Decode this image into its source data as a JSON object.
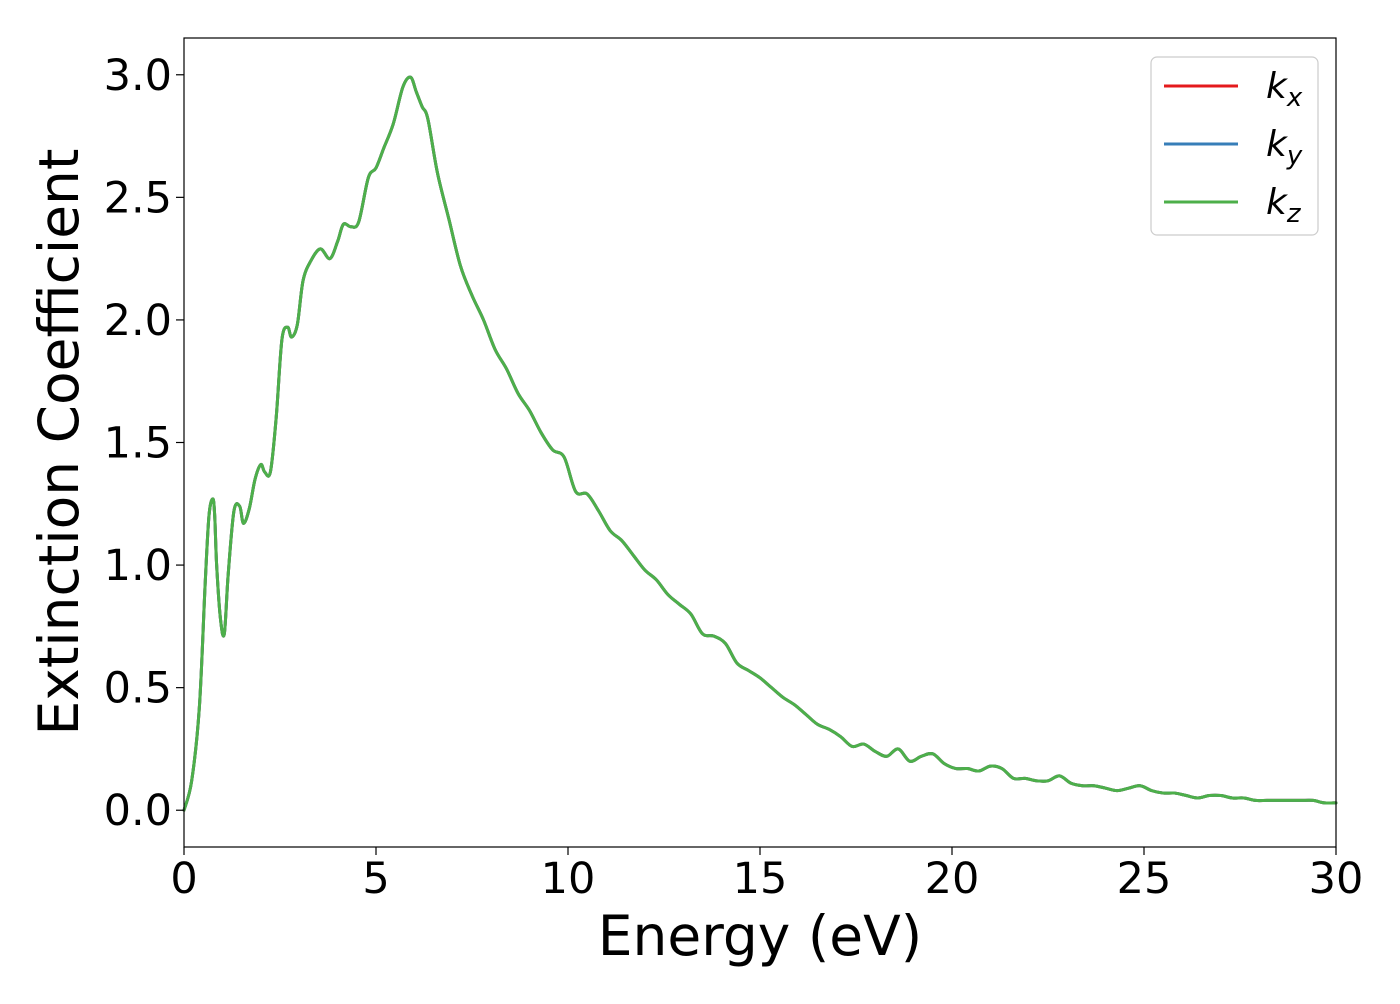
{
  "chart_data": {
    "type": "line",
    "xlabel": "Energy (eV)",
    "ylabel": "Extinction Coefficient",
    "xlim": [
      0,
      30
    ],
    "ylim": [
      -0.15,
      3.15
    ],
    "xticks": [
      0,
      5,
      10,
      15,
      20,
      25,
      30
    ],
    "xtick_labels": [
      "0",
      "5",
      "10",
      "15",
      "20",
      "25",
      "30"
    ],
    "yticks": [
      0.0,
      0.5,
      1.0,
      1.5,
      2.0,
      2.5,
      3.0
    ],
    "ytick_labels": [
      "0.0",
      "0.5",
      "1.0",
      "1.5",
      "2.0",
      "2.5",
      "3.0"
    ],
    "grid": false,
    "legend_position": "top-right",
    "x": [
      0,
      0.2,
      0.4,
      0.55,
      0.65,
      0.75,
      0.8,
      0.85,
      0.95,
      1.05,
      1.15,
      1.3,
      1.45,
      1.55,
      1.7,
      1.85,
      2.0,
      2.1,
      2.25,
      2.4,
      2.55,
      2.7,
      2.8,
      2.95,
      3.1,
      3.3,
      3.55,
      3.8,
      4.0,
      4.15,
      4.35,
      4.55,
      4.8,
      5.0,
      5.2,
      5.45,
      5.7,
      5.9,
      6.05,
      6.2,
      6.35,
      6.6,
      6.9,
      7.2,
      7.5,
      7.8,
      8.1,
      8.4,
      8.7,
      9.0,
      9.3,
      9.6,
      9.9,
      10.2,
      10.5,
      10.8,
      11.1,
      11.4,
      11.7,
      12.0,
      12.3,
      12.6,
      12.9,
      13.2,
      13.5,
      13.8,
      14.1,
      14.4,
      14.7,
      15.0,
      15.3,
      15.6,
      15.9,
      16.2,
      16.5,
      16.8,
      17.1,
      17.4,
      17.7,
      18.0,
      18.3,
      18.6,
      18.9,
      19.2,
      19.5,
      19.8,
      20.1,
      20.4,
      20.7,
      21.0,
      21.3,
      21.6,
      21.9,
      22.2,
      22.5,
      22.8,
      23.1,
      23.4,
      23.7,
      24.0,
      24.3,
      24.6,
      24.9,
      25.2,
      25.5,
      25.8,
      26.1,
      26.4,
      26.7,
      27.0,
      27.3,
      27.6,
      27.9,
      28.2,
      28.5,
      28.8,
      29.1,
      29.4,
      29.7,
      30.0
    ],
    "series": [
      {
        "name": "k_x",
        "color": "#e41a1c",
        "values": [
          0.0,
          0.12,
          0.42,
          0.92,
          1.2,
          1.27,
          1.2,
          1.0,
          0.78,
          0.72,
          0.96,
          1.22,
          1.24,
          1.17,
          1.23,
          1.35,
          1.41,
          1.38,
          1.38,
          1.6,
          1.92,
          1.97,
          1.93,
          1.98,
          2.16,
          2.24,
          2.29,
          2.25,
          2.32,
          2.39,
          2.38,
          2.4,
          2.58,
          2.62,
          2.7,
          2.8,
          2.95,
          2.99,
          2.93,
          2.87,
          2.82,
          2.6,
          2.41,
          2.22,
          2.1,
          2.0,
          1.88,
          1.8,
          1.7,
          1.63,
          1.54,
          1.47,
          1.44,
          1.3,
          1.29,
          1.22,
          1.14,
          1.1,
          1.04,
          0.98,
          0.94,
          0.88,
          0.84,
          0.8,
          0.72,
          0.71,
          0.68,
          0.6,
          0.57,
          0.54,
          0.5,
          0.46,
          0.43,
          0.39,
          0.35,
          0.33,
          0.3,
          0.26,
          0.27,
          0.24,
          0.22,
          0.25,
          0.2,
          0.22,
          0.23,
          0.19,
          0.17,
          0.17,
          0.16,
          0.18,
          0.17,
          0.13,
          0.13,
          0.12,
          0.12,
          0.14,
          0.11,
          0.1,
          0.1,
          0.09,
          0.08,
          0.09,
          0.1,
          0.08,
          0.07,
          0.07,
          0.06,
          0.05,
          0.06,
          0.06,
          0.05,
          0.05,
          0.04,
          0.04,
          0.04,
          0.04,
          0.04,
          0.04,
          0.03,
          0.03
        ]
      },
      {
        "name": "k_y",
        "color": "#377eb8",
        "values": [
          0.0,
          0.12,
          0.42,
          0.92,
          1.2,
          1.27,
          1.2,
          1.0,
          0.78,
          0.72,
          0.96,
          1.22,
          1.24,
          1.17,
          1.23,
          1.35,
          1.41,
          1.38,
          1.38,
          1.6,
          1.92,
          1.97,
          1.93,
          1.98,
          2.16,
          2.24,
          2.29,
          2.25,
          2.32,
          2.39,
          2.38,
          2.4,
          2.58,
          2.62,
          2.7,
          2.8,
          2.95,
          2.99,
          2.93,
          2.87,
          2.82,
          2.6,
          2.41,
          2.22,
          2.1,
          2.0,
          1.88,
          1.8,
          1.7,
          1.63,
          1.54,
          1.47,
          1.44,
          1.3,
          1.29,
          1.22,
          1.14,
          1.1,
          1.04,
          0.98,
          0.94,
          0.88,
          0.84,
          0.8,
          0.72,
          0.71,
          0.68,
          0.6,
          0.57,
          0.54,
          0.5,
          0.46,
          0.43,
          0.39,
          0.35,
          0.33,
          0.3,
          0.26,
          0.27,
          0.24,
          0.22,
          0.25,
          0.2,
          0.22,
          0.23,
          0.19,
          0.17,
          0.17,
          0.16,
          0.18,
          0.17,
          0.13,
          0.13,
          0.12,
          0.12,
          0.14,
          0.11,
          0.1,
          0.1,
          0.09,
          0.08,
          0.09,
          0.1,
          0.08,
          0.07,
          0.07,
          0.06,
          0.05,
          0.06,
          0.06,
          0.05,
          0.05,
          0.04,
          0.04,
          0.04,
          0.04,
          0.04,
          0.04,
          0.03,
          0.03
        ]
      },
      {
        "name": "k_z",
        "color": "#4daf4a",
        "values": [
          0.0,
          0.12,
          0.42,
          0.92,
          1.2,
          1.27,
          1.2,
          1.0,
          0.78,
          0.72,
          0.96,
          1.22,
          1.24,
          1.17,
          1.23,
          1.35,
          1.41,
          1.38,
          1.38,
          1.6,
          1.92,
          1.97,
          1.93,
          1.98,
          2.16,
          2.24,
          2.29,
          2.25,
          2.32,
          2.39,
          2.38,
          2.4,
          2.58,
          2.62,
          2.7,
          2.8,
          2.95,
          2.99,
          2.93,
          2.87,
          2.82,
          2.6,
          2.41,
          2.22,
          2.1,
          2.0,
          1.88,
          1.8,
          1.7,
          1.63,
          1.54,
          1.47,
          1.44,
          1.3,
          1.29,
          1.22,
          1.14,
          1.1,
          1.04,
          0.98,
          0.94,
          0.88,
          0.84,
          0.8,
          0.72,
          0.71,
          0.68,
          0.6,
          0.57,
          0.54,
          0.5,
          0.46,
          0.43,
          0.39,
          0.35,
          0.33,
          0.3,
          0.26,
          0.27,
          0.24,
          0.22,
          0.25,
          0.2,
          0.22,
          0.23,
          0.19,
          0.17,
          0.17,
          0.16,
          0.18,
          0.17,
          0.13,
          0.13,
          0.12,
          0.12,
          0.14,
          0.11,
          0.1,
          0.1,
          0.09,
          0.08,
          0.09,
          0.1,
          0.08,
          0.07,
          0.07,
          0.06,
          0.05,
          0.06,
          0.06,
          0.05,
          0.05,
          0.04,
          0.04,
          0.04,
          0.04,
          0.04,
          0.04,
          0.03,
          0.03
        ]
      }
    ],
    "legend": [
      {
        "base": "k",
        "sub": "x",
        "color": "#e41a1c"
      },
      {
        "base": "k",
        "sub": "y",
        "color": "#377eb8"
      },
      {
        "base": "k",
        "sub": "z",
        "color": "#4daf4a"
      }
    ]
  }
}
